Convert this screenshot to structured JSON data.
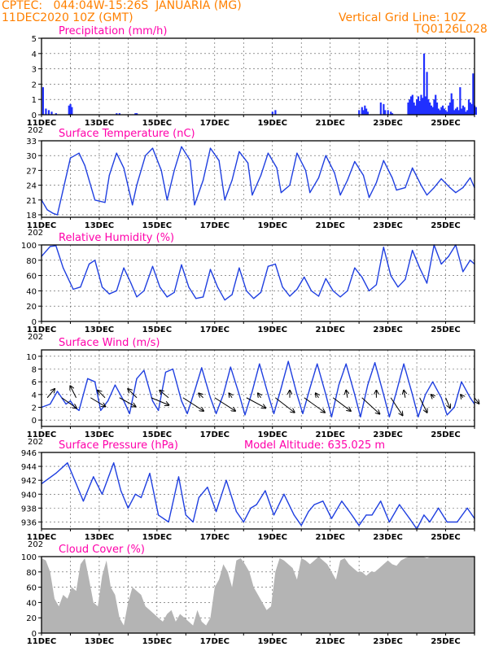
{
  "header": {
    "line1": "CPTEC:   044:04W-15:26S  JANUARIA (MG)",
    "line2": "11DEC2020 10Z (GMT)",
    "right1": "Vertical Grid Line: 10Z",
    "right2": "TQ0126L028",
    "color": "#ff8000"
  },
  "colors": {
    "title": "#ff00aa",
    "line": "#1f3fe0",
    "bar": "#2030ff",
    "cloud": "#b4b4b4",
    "grid": "#555555"
  },
  "x_axis": {
    "labels": [
      "11DEC",
      "13DEC",
      "15DEC",
      "17DEC",
      "19DEC",
      "21DEC",
      "23DEC",
      "25DEC"
    ],
    "clipped_year": "202"
  },
  "extra_label": "Model Altitude: 635.025 m",
  "chart_data": [
    {
      "type": "bar",
      "title": "Precipitation (mm/h)",
      "ylim": [
        0,
        5
      ],
      "yticks": [
        0,
        1,
        2,
        3,
        4,
        5
      ],
      "x": [
        0.05,
        0.15,
        0.25,
        0.35,
        0.5,
        0.95,
        1.0,
        1.05,
        2.6,
        2.7,
        3.25,
        3.3,
        8.0,
        8.1,
        11.0,
        11.1,
        11.15,
        11.2,
        11.25,
        11.3,
        11.75,
        11.85,
        11.9,
        12.0,
        12.1,
        12.15,
        12.7,
        12.75,
        12.8,
        12.85,
        12.9,
        12.95,
        13.0,
        13.05,
        13.1,
        13.15,
        13.2,
        13.25,
        13.3,
        13.35,
        13.4,
        13.45,
        13.5,
        13.55,
        13.6,
        13.65,
        13.7,
        13.75,
        13.8,
        13.85,
        13.9,
        13.95,
        14.0,
        14.05,
        14.1,
        14.15,
        14.2,
        14.25,
        14.3,
        14.35,
        14.4,
        14.45,
        14.5,
        14.55,
        14.6,
        14.65,
        14.7,
        14.75,
        14.8,
        14.85,
        14.9,
        14.95,
        15.0,
        15.05
      ],
      "values": [
        1.8,
        0.4,
        0.3,
        0.2,
        0.1,
        0.6,
        0.7,
        0.5,
        0.1,
        0.1,
        0.1,
        0.1,
        0.2,
        0.3,
        0.3,
        0.5,
        0.3,
        0.6,
        0.4,
        0.2,
        0.8,
        0.7,
        0.3,
        0.3,
        0.2,
        0.1,
        0.8,
        1.0,
        1.2,
        1.3,
        0.8,
        0.6,
        1.0,
        1.2,
        0.9,
        1.3,
        1.1,
        4.0,
        1.2,
        2.8,
        1.0,
        0.8,
        0.6,
        0.5,
        1.0,
        1.3,
        0.8,
        0.4,
        0.3,
        0.5,
        0.6,
        0.4,
        0.3,
        0.2,
        0.6,
        0.8,
        1.4,
        1.0,
        0.3,
        0.4,
        0.5,
        0.3,
        1.8,
        0.4,
        0.6,
        0.5,
        0.2,
        0.3,
        1.0,
        0.8,
        0.7,
        2.7,
        0.6,
        0.5
      ]
    },
    {
      "type": "line",
      "title": "Surface Temperature (nC)",
      "ylim": [
        17.5,
        33
      ],
      "yticks": [
        18,
        21,
        24,
        27,
        30,
        33
      ],
      "x": [
        0.0,
        0.2,
        0.4,
        0.55,
        1.0,
        1.3,
        1.5,
        1.85,
        2.2,
        2.35,
        2.6,
        2.85,
        3.15,
        3.3,
        3.6,
        3.85,
        4.15,
        4.35,
        4.6,
        4.85,
        5.15,
        5.3,
        5.6,
        5.85,
        6.15,
        6.35,
        6.6,
        6.85,
        7.15,
        7.3,
        7.6,
        7.85,
        8.15,
        8.3,
        8.6,
        8.85,
        9.15,
        9.3,
        9.6,
        9.85,
        10.15,
        10.35,
        10.6,
        10.85,
        11.15,
        11.35,
        11.6,
        11.85,
        12.15,
        12.3,
        12.6,
        12.85,
        13.15,
        13.35,
        13.6,
        13.85,
        14.15,
        14.35,
        14.6,
        14.85,
        15.0
      ],
      "values": [
        21.0,
        19.0,
        18.3,
        18.0,
        29.5,
        30.5,
        28.0,
        21.0,
        20.5,
        26.0,
        30.5,
        27.5,
        20.0,
        24.0,
        30.0,
        31.5,
        27.0,
        21.0,
        27.0,
        31.8,
        29.0,
        20.0,
        25.0,
        31.5,
        29.0,
        21.0,
        25.0,
        30.8,
        28.5,
        22.0,
        26.0,
        30.5,
        27.5,
        22.5,
        24.0,
        30.5,
        27.0,
        22.5,
        25.5,
        30.0,
        26.5,
        22.0,
        25.0,
        28.8,
        26.0,
        21.5,
        24.5,
        29.0,
        25.5,
        23.0,
        23.5,
        27.5,
        24.0,
        22.0,
        23.5,
        25.3,
        23.5,
        22.5,
        23.5,
        25.5,
        23.5
      ]
    },
    {
      "type": "line",
      "title": "Relative Humidity (%)",
      "ylim": [
        0,
        100
      ],
      "yticks": [
        0,
        20,
        40,
        60,
        80,
        100
      ],
      "x": [
        0.0,
        0.3,
        0.5,
        0.75,
        1.1,
        1.35,
        1.5,
        1.65,
        1.85,
        2.1,
        2.35,
        2.6,
        2.85,
        3.1,
        3.3,
        3.55,
        3.85,
        4.1,
        4.35,
        4.6,
        4.85,
        5.1,
        5.35,
        5.6,
        5.85,
        6.1,
        6.35,
        6.6,
        6.85,
        7.1,
        7.35,
        7.6,
        7.85,
        8.1,
        8.35,
        8.6,
        8.85,
        9.1,
        9.35,
        9.6,
        9.85,
        10.1,
        10.35,
        10.6,
        10.85,
        11.1,
        11.35,
        11.6,
        11.85,
        12.1,
        12.35,
        12.6,
        12.85,
        13.1,
        13.35,
        13.6,
        13.85,
        14.1,
        14.35,
        14.6,
        14.85,
        15.0
      ],
      "values": [
        85,
        98,
        99,
        70,
        42,
        45,
        60,
        75,
        80,
        45,
        36,
        40,
        70,
        50,
        32,
        40,
        72,
        45,
        32,
        38,
        74,
        45,
        30,
        32,
        68,
        45,
        28,
        35,
        70,
        40,
        30,
        38,
        72,
        75,
        45,
        33,
        42,
        58,
        40,
        33,
        56,
        40,
        32,
        40,
        70,
        58,
        40,
        48,
        97,
        60,
        45,
        55,
        93,
        70,
        50,
        100,
        75,
        85,
        100,
        65,
        80,
        75
      ]
    },
    {
      "type": "line",
      "title": "Surface Wind (m/s)",
      "ylim": [
        -1,
        11
      ],
      "yticks": [
        0,
        2,
        4,
        6,
        8,
        10
      ],
      "x": [
        0.0,
        0.3,
        0.55,
        0.85,
        1.0,
        1.15,
        1.3,
        1.6,
        1.85,
        2.05,
        2.3,
        2.55,
        2.85,
        3.05,
        3.3,
        3.55,
        3.85,
        4.05,
        4.3,
        4.55,
        4.85,
        5.05,
        5.3,
        5.55,
        5.85,
        6.05,
        6.3,
        6.55,
        6.85,
        7.05,
        7.3,
        7.55,
        7.85,
        8.05,
        8.3,
        8.55,
        8.85,
        9.05,
        9.3,
        9.55,
        9.85,
        10.05,
        10.3,
        10.55,
        10.85,
        11.05,
        11.3,
        11.55,
        11.85,
        12.05,
        12.3,
        12.55,
        12.85,
        13.05,
        13.3,
        13.55,
        13.85,
        14.05,
        14.3,
        14.55,
        14.85,
        15.0
      ],
      "values": [
        2.0,
        2.5,
        4.5,
        2.5,
        3.0,
        2.0,
        1.5,
        6.5,
        6.0,
        1.5,
        3.0,
        5.5,
        3.0,
        1.0,
        6.5,
        7.8,
        3.0,
        1.5,
        7.5,
        8.0,
        3.0,
        1.0,
        4.5,
        8.2,
        3.5,
        1.0,
        4.0,
        8.3,
        4.0,
        0.8,
        4.5,
        8.8,
        4.0,
        1.0,
        5.0,
        9.2,
        4.0,
        1.0,
        5.0,
        8.8,
        4.0,
        0.5,
        5.5,
        8.8,
        4.0,
        0.5,
        5.5,
        9.0,
        4.0,
        0.5,
        4.5,
        8.8,
        4.0,
        0.5,
        4.0,
        6.0,
        3.5,
        0.8,
        2.0,
        6.0,
        3.5,
        2.5
      ],
      "wind_vectors": [
        {
          "x": 0.2,
          "y": 3.5,
          "u": 1.0,
          "v": 1.2
        },
        {
          "x": 0.7,
          "y": 3.5,
          "u": 2.0,
          "v": -1.4
        },
        {
          "x": 1.2,
          "y": 3.5,
          "u": -0.8,
          "v": 1.6
        },
        {
          "x": 1.7,
          "y": 3.5,
          "u": 2.0,
          "v": -1.2
        },
        {
          "x": 2.2,
          "y": 3.5,
          "u": -1.0,
          "v": 1.0
        },
        {
          "x": 2.7,
          "y": 3.5,
          "u": 2.2,
          "v": -1.2
        },
        {
          "x": 3.3,
          "y": 3.5,
          "u": -1.2,
          "v": 1.2
        },
        {
          "x": 3.8,
          "y": 3.5,
          "u": 2.4,
          "v": -1.0
        },
        {
          "x": 4.4,
          "y": 3.5,
          "u": -1.2,
          "v": 1.0
        },
        {
          "x": 4.9,
          "y": 3.5,
          "u": 2.8,
          "v": -1.8
        },
        {
          "x": 5.6,
          "y": 3.5,
          "u": -0.6,
          "v": 0.6
        },
        {
          "x": 6.0,
          "y": 3.5,
          "u": 2.8,
          "v": -1.8
        },
        {
          "x": 6.6,
          "y": 3.5,
          "u": -0.4,
          "v": 0.6
        },
        {
          "x": 7.1,
          "y": 3.5,
          "u": 2.6,
          "v": -1.4
        },
        {
          "x": 7.6,
          "y": 3.5,
          "u": -0.4,
          "v": 0.6
        },
        {
          "x": 8.1,
          "y": 3.5,
          "u": 2.6,
          "v": -2.0
        },
        {
          "x": 8.6,
          "y": 3.5,
          "u": 0.0,
          "v": 1.0
        },
        {
          "x": 9.1,
          "y": 3.5,
          "u": 2.8,
          "v": -2.0
        },
        {
          "x": 9.6,
          "y": 3.5,
          "u": -0.4,
          "v": 0.6
        },
        {
          "x": 10.1,
          "y": 3.5,
          "u": 2.4,
          "v": -1.8
        },
        {
          "x": 10.6,
          "y": 3.5,
          "u": -0.2,
          "v": 1.0
        },
        {
          "x": 11.1,
          "y": 3.5,
          "u": 2.4,
          "v": -2.2
        },
        {
          "x": 11.6,
          "y": 3.5,
          "u": 0.0,
          "v": 1.0
        },
        {
          "x": 12.1,
          "y": 3.5,
          "u": 1.6,
          "v": -2.4
        },
        {
          "x": 12.6,
          "y": 3.5,
          "u": -0.2,
          "v": 1.0
        },
        {
          "x": 13.1,
          "y": 3.5,
          "u": 1.0,
          "v": -2.0
        },
        {
          "x": 13.6,
          "y": 3.5,
          "u": -0.4,
          "v": 0.4
        },
        {
          "x": 14.0,
          "y": 3.5,
          "u": 0.6,
          "v": -1.4
        },
        {
          "x": 14.6,
          "y": 3.5,
          "u": -0.3,
          "v": 0.4
        },
        {
          "x": 15.0,
          "y": 3.5,
          "u": 0.6,
          "v": -0.8
        }
      ]
    },
    {
      "type": "line",
      "title": "Surface Pressure (hPa)",
      "ylim": [
        935,
        946
      ],
      "yticks": [
        936,
        938,
        940,
        942,
        944,
        946
      ],
      "x": [
        0.0,
        0.5,
        0.9,
        1.2,
        1.45,
        1.8,
        2.1,
        2.5,
        2.75,
        3.0,
        3.25,
        3.45,
        3.75,
        4.05,
        4.4,
        4.75,
        5.0,
        5.25,
        5.45,
        5.75,
        6.05,
        6.4,
        6.75,
        7.0,
        7.25,
        7.45,
        7.75,
        8.05,
        8.4,
        8.75,
        9.0,
        9.25,
        9.45,
        9.75,
        10.05,
        10.4,
        10.75,
        11.0,
        11.25,
        11.45,
        11.75,
        12.05,
        12.4,
        12.75,
        13.0,
        13.25,
        13.45,
        13.75,
        14.05,
        14.4,
        14.75,
        15.0
      ],
      "values": [
        941.5,
        943.0,
        944.5,
        941.5,
        939.0,
        942.5,
        940.0,
        944.5,
        940.5,
        938.0,
        940.0,
        939.5,
        943.0,
        937.0,
        936.0,
        942.5,
        937.0,
        936.0,
        939.5,
        941.0,
        937.5,
        942.0,
        937.5,
        936.0,
        938.0,
        938.5,
        940.5,
        937.0,
        940.0,
        937.0,
        935.5,
        937.5,
        938.5,
        939.0,
        936.5,
        939.0,
        937.0,
        935.5,
        937.0,
        937.0,
        939.0,
        936.0,
        938.5,
        936.5,
        935.0,
        937.0,
        936.0,
        938.0,
        936.0,
        936.0,
        938.0,
        936.5
      ]
    },
    {
      "type": "area",
      "title": "Cloud Cover (%)",
      "ylim": [
        0,
        100
      ],
      "yticks": [
        0,
        20,
        40,
        60,
        80,
        100
      ],
      "x": [
        0.0,
        0.15,
        0.3,
        0.45,
        0.6,
        0.75,
        0.9,
        1.05,
        1.2,
        1.35,
        1.5,
        1.65,
        1.8,
        1.95,
        2.1,
        2.25,
        2.4,
        2.55,
        2.7,
        2.85,
        3.0,
        3.15,
        3.3,
        3.45,
        3.6,
        3.75,
        3.9,
        4.05,
        4.2,
        4.35,
        4.5,
        4.65,
        4.8,
        4.95,
        5.1,
        5.25,
        5.4,
        5.55,
        5.7,
        5.85,
        6.0,
        6.15,
        6.3,
        6.45,
        6.6,
        6.75,
        6.9,
        7.05,
        7.2,
        7.35,
        7.5,
        7.65,
        7.8,
        7.95,
        8.1,
        8.25,
        8.4,
        8.55,
        8.7,
        8.85,
        9.0,
        9.15,
        9.3,
        9.45,
        9.6,
        9.75,
        9.9,
        10.05,
        10.2,
        10.35,
        10.5,
        10.65,
        10.8,
        10.95,
        11.1,
        11.25,
        11.4,
        11.55,
        11.7,
        11.85,
        12.0,
        12.15,
        12.3,
        12.45,
        12.6,
        12.75,
        12.9,
        13.05,
        13.2,
        13.35,
        13.5,
        13.65,
        13.8,
        13.95,
        14.1,
        14.25,
        14.4,
        14.55,
        14.7,
        14.85,
        15.0
      ],
      "values": [
        98,
        95,
        80,
        45,
        35,
        50,
        45,
        60,
        55,
        90,
        98,
        70,
        40,
        35,
        75,
        95,
        60,
        50,
        20,
        10,
        40,
        60,
        55,
        50,
        35,
        30,
        25,
        20,
        15,
        25,
        30,
        15,
        25,
        20,
        15,
        10,
        30,
        15,
        10,
        20,
        60,
        70,
        90,
        80,
        60,
        95,
        98,
        90,
        80,
        60,
        50,
        40,
        30,
        35,
        80,
        98,
        95,
        90,
        85,
        70,
        98,
        95,
        90,
        95,
        100,
        95,
        90,
        80,
        70,
        95,
        98,
        90,
        85,
        80,
        80,
        75,
        80,
        80,
        85,
        90,
        95,
        90,
        88,
        95,
        98,
        100,
        100,
        100,
        100,
        98,
        100,
        100,
        100,
        100,
        100,
        100,
        100,
        100,
        100,
        100,
        100
      ]
    }
  ]
}
